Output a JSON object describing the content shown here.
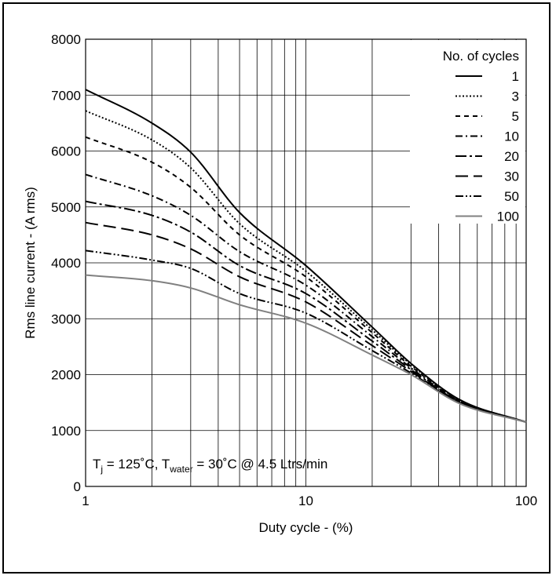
{
  "chart_data": {
    "type": "line",
    "xscale": "log",
    "xlim": [
      1,
      100
    ],
    "ylim": [
      0,
      8000
    ],
    "xlabel": "Duty cycle - (%)",
    "ylabel": "Rms line current - (A rms)",
    "x_ticks": [
      1,
      10,
      100
    ],
    "x_tick_labels": [
      "1",
      "10",
      "100"
    ],
    "y_ticks": [
      0,
      1000,
      2000,
      3000,
      4000,
      5000,
      6000,
      7000,
      8000
    ],
    "y_tick_labels": [
      "0",
      "1000",
      "2000",
      "3000",
      "4000",
      "5000",
      "6000",
      "7000",
      "8000"
    ],
    "grid": true,
    "legend_title": "No. of cycles",
    "legend_position": "top-right",
    "annotation": {
      "t1": "T",
      "s1": "j",
      "m1": " = 125˚C, T",
      "s2": "water",
      "m2": " = 30˚C @ 4.5 Ltrs/min"
    },
    "x": [
      1,
      2,
      3,
      5,
      10,
      20,
      30,
      50,
      100
    ],
    "series": [
      {
        "name": "1",
        "style": "solid",
        "color": "#000000",
        "values": [
          7100,
          6500,
          5980,
          4900,
          3950,
          2850,
          2200,
          1550,
          1150
        ]
      },
      {
        "name": "3",
        "style": "dotted",
        "color": "#000000",
        "values": [
          6720,
          6200,
          5700,
          4700,
          3850,
          2800,
          2180,
          1540,
          1150
        ]
      },
      {
        "name": "5",
        "style": "dashed-short",
        "color": "#000000",
        "values": [
          6250,
          5800,
          5350,
          4500,
          3750,
          2750,
          2150,
          1530,
          1150
        ]
      },
      {
        "name": "10",
        "style": "dash-dot",
        "color": "#000000",
        "values": [
          5580,
          5200,
          4850,
          4200,
          3600,
          2680,
          2120,
          1520,
          1150
        ]
      },
      {
        "name": "20",
        "style": "long-dash-dot",
        "color": "#000000",
        "values": [
          5100,
          4850,
          4550,
          3950,
          3450,
          2600,
          2090,
          1510,
          1150
        ]
      },
      {
        "name": "30",
        "style": "long-dash",
        "color": "#000000",
        "values": [
          4720,
          4500,
          4250,
          3750,
          3300,
          2520,
          2060,
          1500,
          1150
        ]
      },
      {
        "name": "50",
        "style": "dash-dot-dot",
        "color": "#000000",
        "values": [
          4220,
          4050,
          3900,
          3450,
          3100,
          2430,
          2030,
          1490,
          1150
        ]
      },
      {
        "name": "100",
        "style": "solid",
        "color": "#808080",
        "values": [
          3780,
          3680,
          3550,
          3250,
          2920,
          2350,
          2000,
          1480,
          1150
        ]
      }
    ]
  }
}
